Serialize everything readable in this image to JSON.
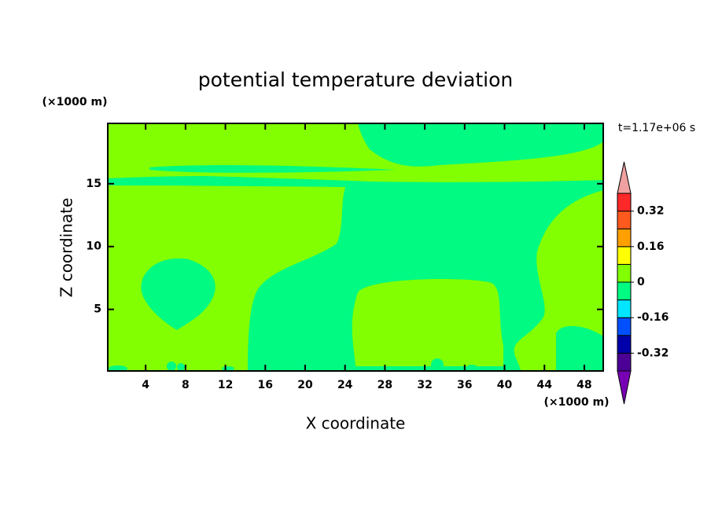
{
  "chart_data": {
    "type": "contour",
    "title": "potential temperature deviation",
    "x_label": "X coordinate",
    "y_label": "Z coordinate",
    "x_unit_label": "(×1000 m)",
    "y_unit_label": "(×1000 m)",
    "annotation": "t=1.17e+06 s",
    "xlim": [
      0.2,
      49.9
    ],
    "xticks": [
      4,
      8,
      12,
      16,
      20,
      24,
      28,
      32,
      36,
      40,
      44,
      48
    ],
    "ylim": [
      0.1,
      19.8
    ],
    "yticks": [
      5,
      10,
      15
    ],
    "colorbar": {
      "levels": [
        -0.4,
        -0.32,
        -0.24,
        -0.16,
        -0.08,
        0,
        0.08,
        0.16,
        0.24,
        0.32,
        0.4
      ],
      "colors": [
        "#4b0096",
        "#0000aa",
        "#0050ff",
        "#00e6ff",
        "#00fa82",
        "#82ff00",
        "#ffff00",
        "#ffa000",
        "#ff5a1e",
        "#ff2828"
      ],
      "under_color": "#7800b4",
      "over_color": "#f0a0a0",
      "ticks": [
        -0.32,
        -0.16,
        0,
        0.16,
        0.32
      ]
    }
  }
}
